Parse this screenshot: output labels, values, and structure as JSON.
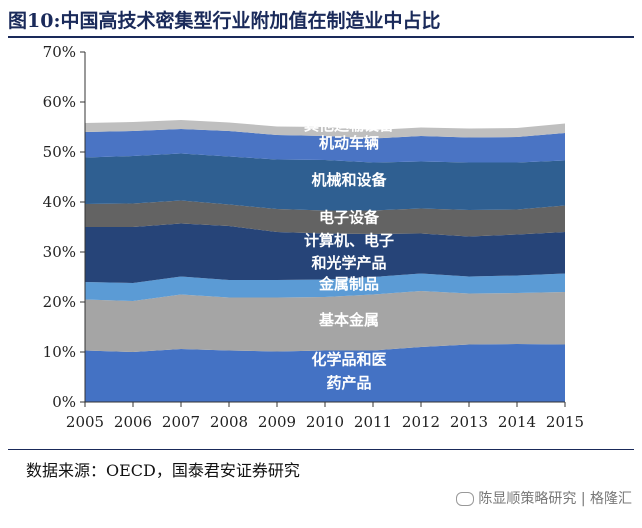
{
  "title": "图10:中国高技术密集型行业附加值在制造业中占比",
  "source": "数据来源：OECD，国泰君安证券研究",
  "watermark": "陈显顺策略研究 | 格隆汇",
  "chart_data": {
    "type": "area",
    "stacked": true,
    "x": [
      2005,
      2006,
      2007,
      2008,
      2009,
      2010,
      2011,
      2012,
      2013,
      2014,
      2015
    ],
    "ylim": [
      0,
      70
    ],
    "yticks": [
      "0%",
      "10%",
      "20%",
      "30%",
      "40%",
      "50%",
      "60%",
      "70%"
    ],
    "grid": false,
    "legend": "none",
    "series": [
      {
        "name": "化学品和医药产品",
        "color": "#4472c4",
        "values": [
          10.3,
          10.0,
          10.6,
          10.3,
          10.1,
          10.3,
          10.3,
          11.0,
          11.5,
          11.6,
          11.5
        ]
      },
      {
        "name": "基本金属",
        "color": "#a5a5a5",
        "values": [
          10.2,
          10.2,
          10.9,
          10.6,
          10.8,
          10.7,
          11.2,
          11.2,
          10.2,
          10.2,
          10.5
        ]
      },
      {
        "name": "金属制品",
        "color": "#5b9bd5",
        "values": [
          3.5,
          3.6,
          3.6,
          3.5,
          3.5,
          3.5,
          3.5,
          3.5,
          3.4,
          3.5,
          3.7
        ]
      },
      {
        "name": "计算机、电子和光学产品",
        "color": "#264478",
        "values": [
          11.0,
          11.2,
          10.6,
          10.8,
          9.6,
          9.2,
          8.6,
          8.0,
          8.0,
          8.2,
          8.3
        ]
      },
      {
        "name": "电子设备",
        "color": "#636363",
        "values": [
          4.6,
          4.7,
          4.6,
          4.3,
          4.6,
          4.6,
          4.7,
          5.0,
          5.3,
          5.0,
          5.3
        ]
      },
      {
        "name": "机械和设备",
        "color": "#2f5f91",
        "values": [
          9.3,
          9.5,
          9.4,
          9.6,
          9.9,
          10.1,
          9.6,
          9.4,
          9.5,
          9.4,
          9.0
        ]
      },
      {
        "name": "机动车辆",
        "color": "#4a74c4",
        "values": [
          5.1,
          5.0,
          4.9,
          5.1,
          4.9,
          4.8,
          4.8,
          5.1,
          5.0,
          5.1,
          5.5
        ]
      },
      {
        "name": "其他运输设备",
        "color": "#bfbfbf",
        "values": [
          1.8,
          1.8,
          1.8,
          1.7,
          1.7,
          1.8,
          1.7,
          1.7,
          1.8,
          1.8,
          1.9
        ]
      }
    ],
    "labels": [
      {
        "lines": [
          "化学品和医",
          "药产品"
        ],
        "x": 2010.5,
        "y": [
          7.5,
          2.8
        ]
      },
      {
        "lines": [
          "基本金属"
        ],
        "x": 2010.5,
        "y": [
          15.4
        ]
      },
      {
        "lines": [
          "金属制品"
        ],
        "x": 2010.5,
        "y": [
          22.6
        ]
      },
      {
        "lines": [
          "计算机、电子",
          "和光学产品"
        ],
        "x": 2010.5,
        "y": [
          31.3,
          26.8
        ]
      },
      {
        "lines": [
          "电子设备"
        ],
        "x": 2010.5,
        "y": [
          35.9
        ]
      },
      {
        "lines": [
          "机械和设备"
        ],
        "x": 2010.5,
        "y": [
          43.4
        ]
      },
      {
        "lines": [
          "机动车辆"
        ],
        "x": 2010.5,
        "y": [
          50.8
        ]
      },
      {
        "lines": [
          "其他运输设备"
        ],
        "x": 2010.5,
        "y": [
          54.4
        ]
      }
    ]
  }
}
